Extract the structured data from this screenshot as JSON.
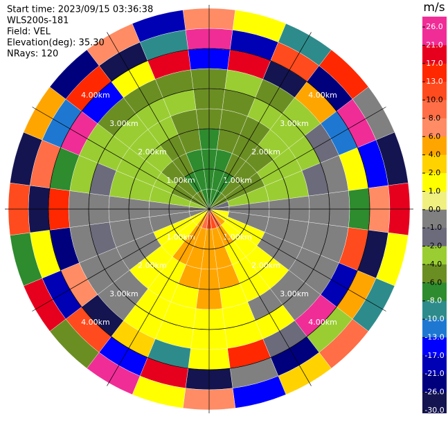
{
  "chart_data": {
    "type": "ppi",
    "header": [
      "Start time: 2023/09/15 03:36:38",
      "WLS200s-181",
      "Field: VEL",
      "Elevation(deg): 35.30",
      "NRays: 120"
    ],
    "colorbar_unit": "m/s",
    "levels": [
      {
        "value": 26,
        "label": "26.0"
      },
      {
        "value": 21,
        "label": "21.0"
      },
      {
        "value": 17,
        "label": "17.0"
      },
      {
        "value": 13,
        "label": "13.0"
      },
      {
        "value": 10,
        "label": "10.0"
      },
      {
        "value": 8,
        "label": "8.0"
      },
      {
        "value": 6,
        "label": "6.0"
      },
      {
        "value": 4,
        "label": "4.0"
      },
      {
        "value": 2,
        "label": "2.0"
      },
      {
        "value": 1,
        "label": "1.0"
      },
      {
        "value": 0,
        "label": "0.0"
      },
      {
        "value": -1,
        "label": "-1.0"
      },
      {
        "value": -2,
        "label": "-2.0"
      },
      {
        "value": -4,
        "label": "-4.0"
      },
      {
        "value": -6,
        "label": "-6.0"
      },
      {
        "value": -8,
        "label": "-8.0"
      },
      {
        "value": -10,
        "label": "-10.0"
      },
      {
        "value": -13,
        "label": "-13.0"
      },
      {
        "value": -17,
        "label": "-17.0"
      },
      {
        "value": -21,
        "label": "-21.0"
      },
      {
        "value": -26,
        "label": "-26.0"
      },
      {
        "value": -30,
        "label": "-30.0"
      }
    ],
    "colors": [
      "#f02d96",
      "#e6001e",
      "#ff2800",
      "#ff4b1e",
      "#ff6e46",
      "#ff8c64",
      "#ffa500",
      "#ffd200",
      "#ffff00",
      "#f0f080",
      "#808080",
      "#6b6b7b",
      "#9acd32",
      "#6b8e23",
      "#2e8b2e",
      "#2e8b8b",
      "#1e78d2",
      "#0000ff",
      "#0000b4",
      "#00007d",
      "#141450"
    ],
    "rings": [
      {
        "value": 1,
        "label": "1.00km"
      },
      {
        "value": 2,
        "label": "2.00km"
      },
      {
        "value": 3,
        "label": "3.00km"
      },
      {
        "value": 4,
        "label": "4.00km"
      }
    ],
    "rlim": [
      0,
      5
    ],
    "azimuths": [
      0,
      15,
      30,
      45,
      60,
      75,
      90,
      105,
      120,
      135,
      150,
      165,
      180,
      195,
      210,
      225,
      240,
      255,
      270,
      285,
      300,
      315,
      330,
      345
    ],
    "range_edges": [
      0,
      0.5,
      1,
      1.5,
      2,
      2.5,
      3,
      3.5,
      4,
      4.5,
      5
    ],
    "values": [
      [
        -6,
        -6,
        -6,
        -6,
        -4,
        -4,
        -4,
        -13,
        26,
        8
      ],
      [
        -6,
        -6,
        -6,
        -4,
        -4,
        -4,
        -2,
        21,
        -17,
        2
      ],
      [
        -6,
        -6,
        -4,
        -4,
        -4,
        -2,
        -4,
        -30,
        13,
        -8
      ],
      [
        -4,
        -4,
        -4,
        -4,
        -2,
        -2,
        -2,
        6,
        -21,
        17
      ],
      [
        -4,
        -4,
        -4,
        -2,
        -2,
        -2,
        -1,
        -10,
        26,
        0
      ],
      [
        -1,
        -2,
        -2,
        -2,
        -2,
        -1,
        0,
        2,
        -13,
        -26
      ],
      [
        0,
        0,
        0,
        0,
        0,
        0,
        0,
        -6,
        8,
        21
      ],
      [
        2,
        0,
        0,
        0,
        0,
        0,
        0,
        13,
        -30,
        2
      ],
      [
        2,
        2,
        2,
        0,
        0,
        0,
        0,
        -17,
        6,
        -8
      ],
      [
        6,
        2,
        2,
        2,
        2,
        0,
        0,
        26,
        -2,
        10
      ],
      [
        10,
        6,
        2,
        2,
        2,
        0,
        2,
        -1,
        -21,
        4
      ],
      [
        13,
        6,
        6,
        6,
        2,
        2,
        2,
        17,
        0,
        -13
      ],
      [
        13,
        6,
        6,
        6,
        6,
        2,
        2,
        2,
        -26,
        8
      ],
      [
        10,
        6,
        6,
        6,
        2,
        2,
        2,
        -8,
        21,
        2
      ],
      [
        6,
        6,
        6,
        2,
        2,
        2,
        2,
        4,
        -13,
        26
      ],
      [
        2,
        2,
        2,
        2,
        2,
        0,
        0,
        -30,
        13,
        -4
      ],
      [
        2,
        2,
        2,
        0,
        0,
        0,
        0,
        8,
        -17,
        21
      ],
      [
        0,
        0,
        0,
        0,
        0,
        -1,
        0,
        -21,
        2,
        -6
      ],
      [
        0,
        0,
        0,
        0,
        0,
        0,
        0,
        17,
        -26,
        13
      ],
      [
        -2,
        -2,
        -2,
        -2,
        -2,
        -1,
        -2,
        -6,
        10,
        -30
      ],
      [
        -4,
        -4,
        -2,
        -2,
        -2,
        -2,
        -2,
        26,
        -10,
        6
      ],
      [
        -4,
        -4,
        -4,
        -2,
        -2,
        -2,
        -4,
        -13,
        17,
        -21
      ],
      [
        -4,
        -6,
        -4,
        -4,
        -2,
        -2,
        -4,
        2,
        -26,
        8
      ],
      [
        -6,
        -6,
        -6,
        -4,
        -4,
        -2,
        -4,
        21,
        -8,
        -17
      ]
    ]
  }
}
